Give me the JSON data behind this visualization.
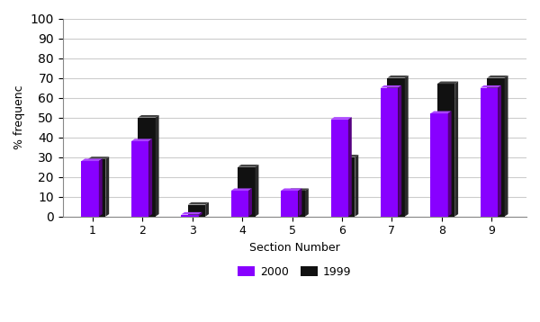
{
  "sections": [
    1,
    2,
    3,
    4,
    5,
    6,
    7,
    8,
    9
  ],
  "values_2000": [
    28,
    38,
    1,
    13,
    13,
    49,
    65,
    52,
    65
  ],
  "values_1999": [
    29,
    50,
    6,
    25,
    13,
    30,
    70,
    67,
    70
  ],
  "bar_color_2000": "#8800FF",
  "bar_color_1999": "#111111",
  "shadow_color_2000": "#550099",
  "shadow_color_1999": "#333333",
  "xlabel": "Section Number",
  "ylabel": "% frequenc",
  "ylim": [
    0,
    100
  ],
  "yticks": [
    0,
    10,
    20,
    30,
    40,
    50,
    60,
    70,
    80,
    90,
    100
  ],
  "legend_labels": [
    "2000",
    "1999"
  ],
  "plot_bg_color": "#ffffff",
  "fig_bg_color": "#ffffff",
  "grid_color": "#cccccc",
  "bar_width": 0.35,
  "axis_spine_color": "#888888"
}
